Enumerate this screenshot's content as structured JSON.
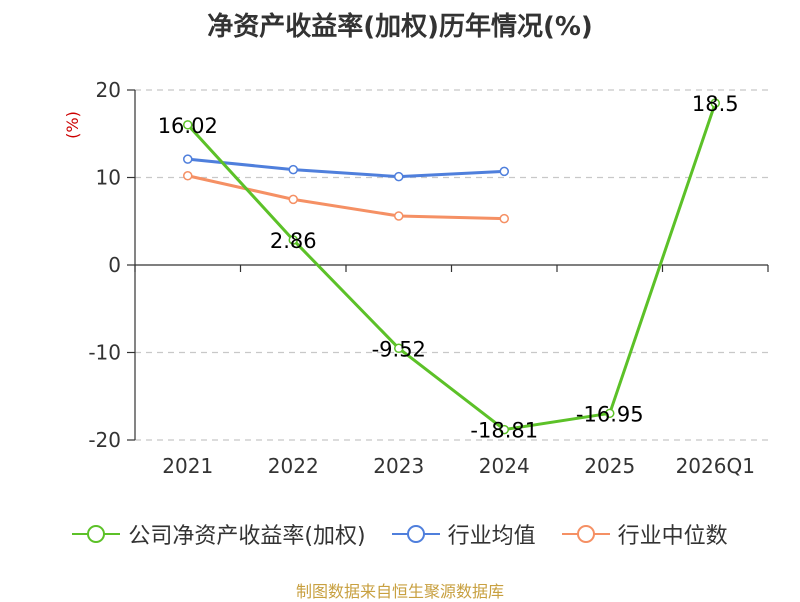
{
  "chart_data": {
    "type": "line",
    "title": "净资产收益率(加权)历年情况(%)",
    "ylabel": "(%)",
    "categories": [
      "2021",
      "2022",
      "2023",
      "2024",
      "2025",
      "2026Q1"
    ],
    "yticks": [
      20,
      10,
      0,
      -10,
      -20
    ],
    "ylim": [
      -20,
      20
    ],
    "grid": true,
    "legend_position": "bottom",
    "series": [
      {
        "name": "公司净资产收益率(加权)",
        "color": "#5cc128",
        "values": [
          16.02,
          2.86,
          -9.52,
          -18.81,
          -16.95,
          18.5
        ],
        "labels": [
          "16.02",
          "2.86",
          "-9.52",
          "-18.81",
          "-16.95",
          "18.5"
        ]
      },
      {
        "name": "行业均值",
        "color": "#4f7fdc",
        "values": [
          12.1,
          10.9,
          10.1,
          10.7,
          null,
          null
        ]
      },
      {
        "name": "行业中位数",
        "color": "#f59064",
        "values": [
          10.2,
          7.5,
          5.6,
          5.3,
          null,
          null
        ]
      }
    ]
  },
  "source": "制图数据来自恒生聚源数据库"
}
